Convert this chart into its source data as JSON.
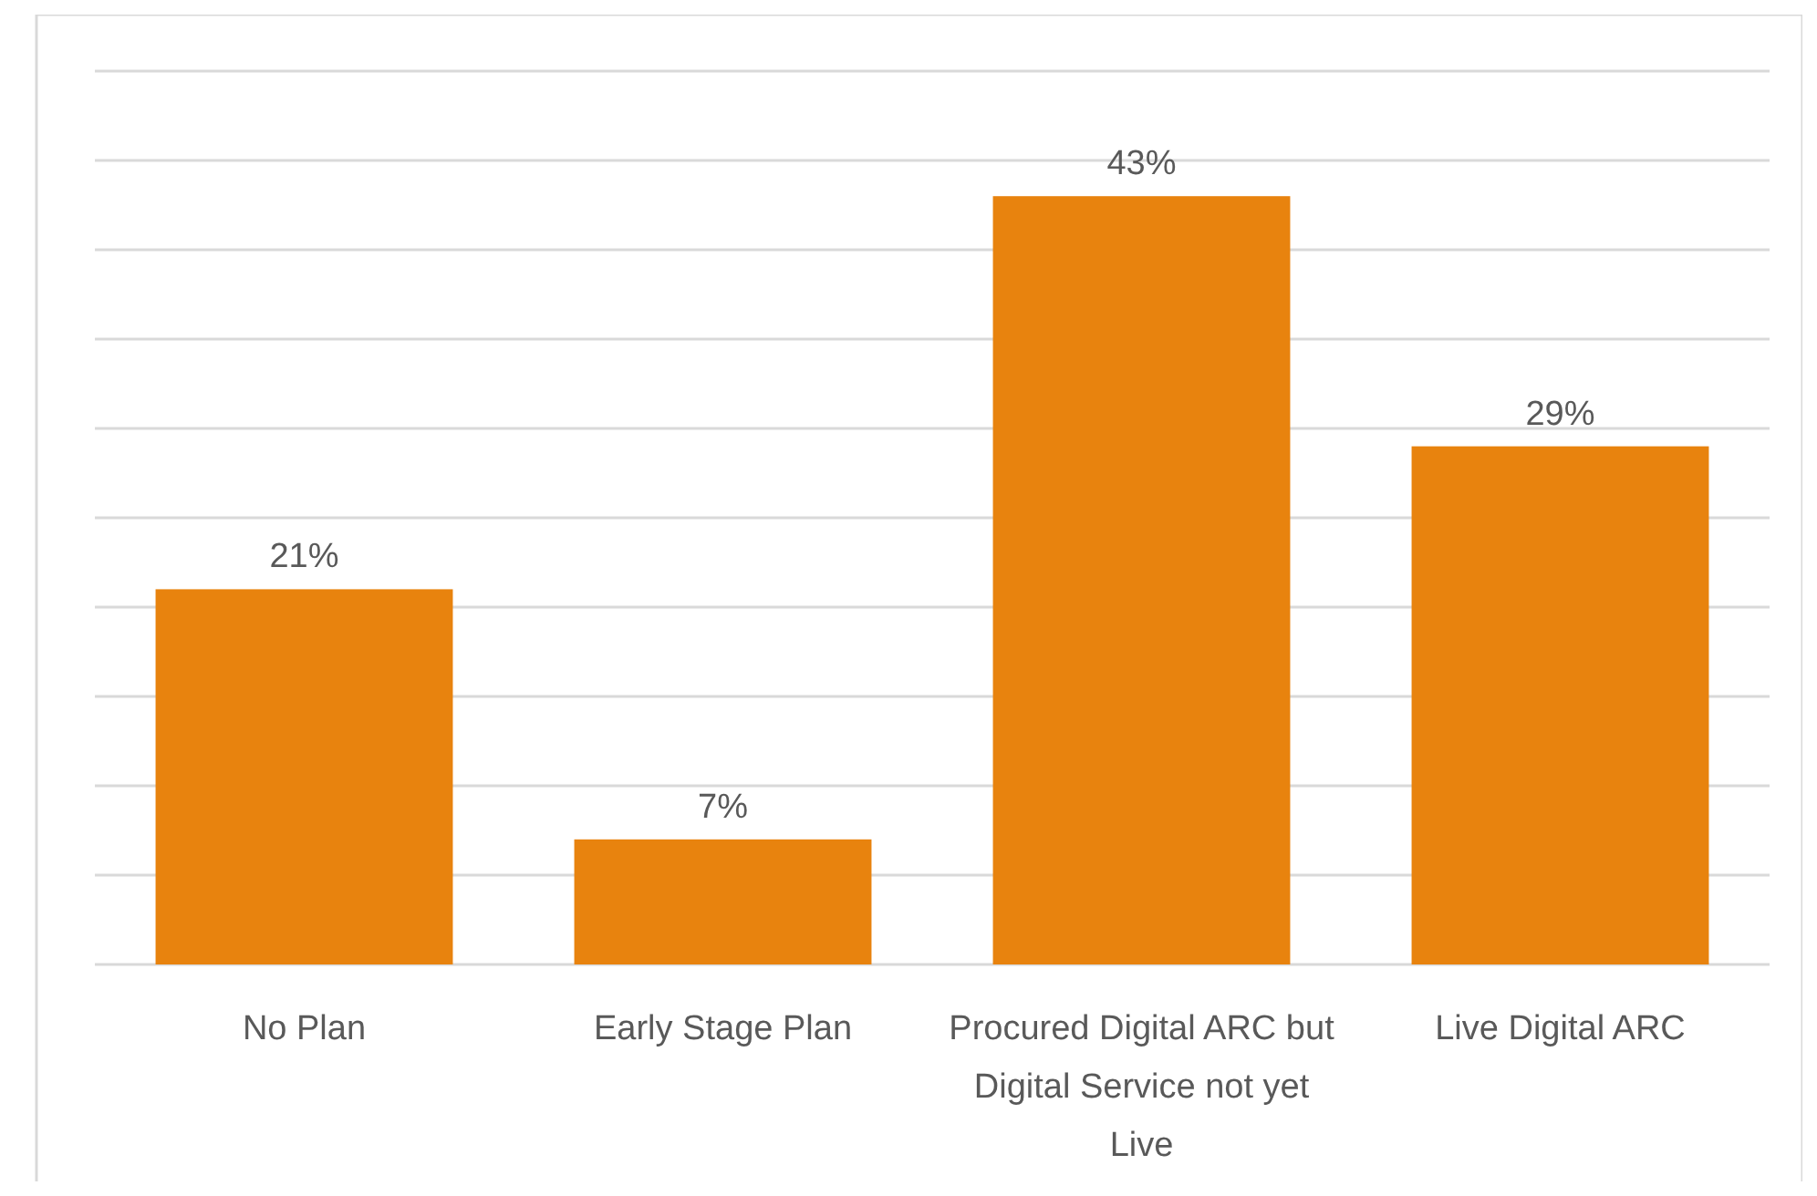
{
  "chart_data": {
    "type": "bar",
    "categories": [
      "No Plan",
      "Early Stage Plan",
      "Procured Digital ARC but Digital Service not yet Live",
      "Live Digital ARC"
    ],
    "values": [
      21,
      7,
      43,
      29
    ],
    "value_labels": [
      "21%",
      "7%",
      "43%",
      "29%"
    ],
    "color": "#e8830e",
    "ylim": [
      0,
      50
    ],
    "yticks": [
      {
        "value": 0,
        "label": null
      },
      {
        "value": 5,
        "label": null
      },
      {
        "value": 10,
        "label": null
      },
      {
        "value": 15,
        "label": null
      },
      {
        "value": 20,
        "label": null
      },
      {
        "value": 25,
        "label": null
      },
      {
        "value": 30,
        "label": null
      },
      {
        "value": 35,
        "label": null
      },
      {
        "value": 40,
        "label": null
      },
      {
        "value": 45,
        "label": null
      },
      {
        "value": 50,
        "label": null
      }
    ],
    "grid": "y",
    "tick_labels": "x"
  }
}
